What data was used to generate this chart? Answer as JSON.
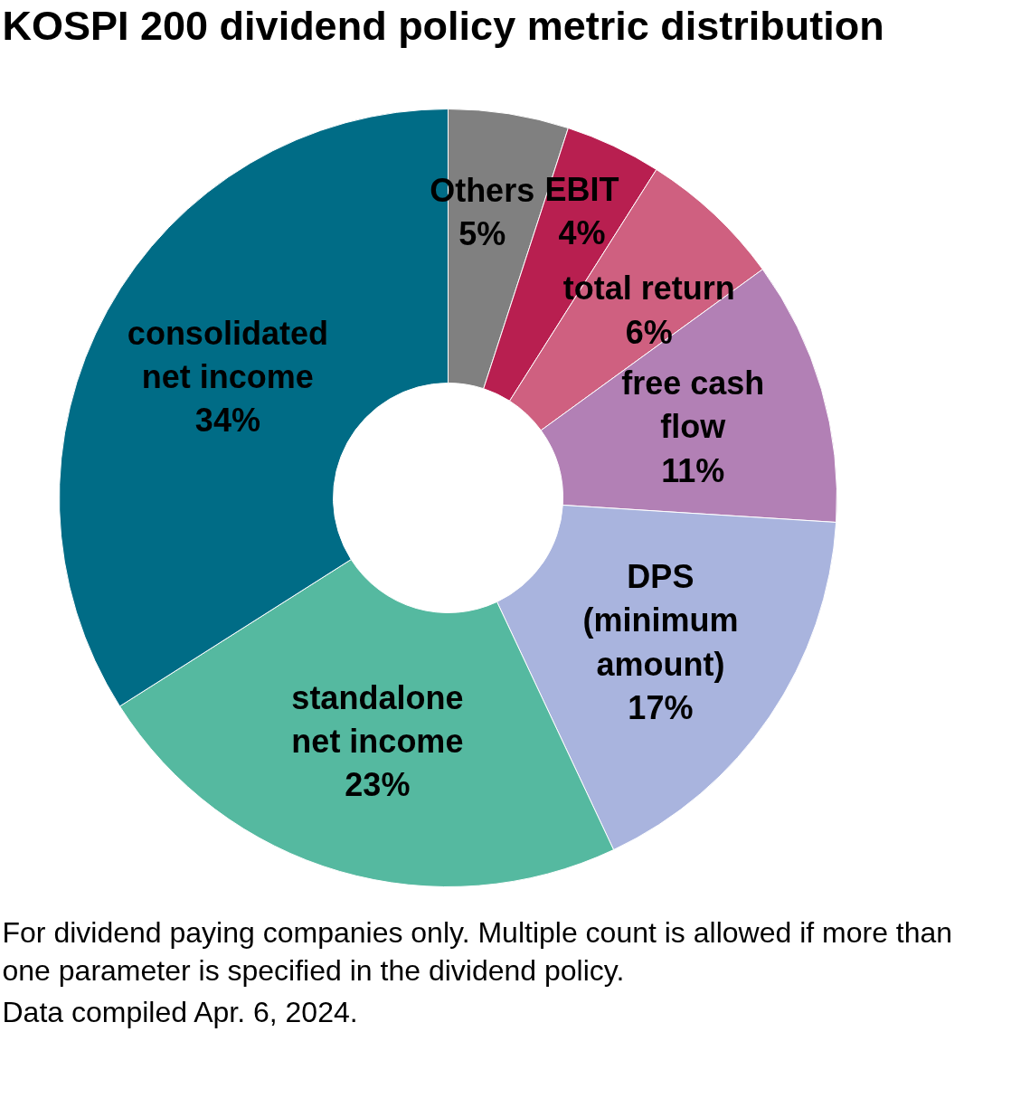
{
  "chart_data": {
    "type": "donut",
    "title": "KOSPI 200 dividend policy metric distribution",
    "categories": [
      "Others",
      "EBIT",
      "total return",
      "free cash flow",
      "DPS (minimum amount)",
      "standalone net income",
      "consolidated net income"
    ],
    "values": [
      5,
      4,
      6,
      11,
      17,
      23,
      34
    ],
    "value_labels": [
      "5%",
      "4%",
      "6%",
      "11%",
      "17%",
      "23%",
      "34%"
    ],
    "colors": [
      "#808080",
      "#b81f50",
      "#cf6080",
      "#b280b5",
      "#a9b4de",
      "#55b9a0",
      "#006c86"
    ],
    "annotations": [
      "For dividend paying companies only. Multiple count is allowed if more than one parameter is specified in the dividend policy.",
      "Data compiled Apr. 6, 2024."
    ]
  }
}
